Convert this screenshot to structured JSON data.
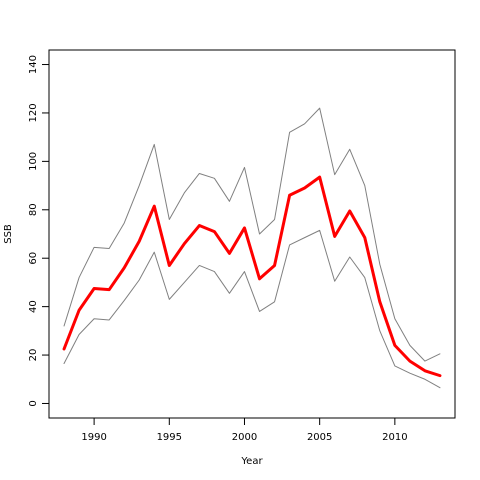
{
  "chart_data": {
    "type": "line",
    "title": "",
    "xlabel": "Year",
    "ylabel": "SSB",
    "xlim": [
      1987,
      2014
    ],
    "ylim": [
      -6,
      146
    ],
    "grid": false,
    "legend": "none",
    "x_ticks": [
      1990,
      1995,
      2000,
      2005,
      2010
    ],
    "y_ticks": [
      0,
      20,
      40,
      60,
      80,
      100,
      120,
      140
    ],
    "x": [
      1988,
      1989,
      1990,
      1991,
      1992,
      1993,
      1994,
      1995,
      1996,
      1997,
      1998,
      1999,
      2000,
      2001,
      2002,
      2003,
      2004,
      2005,
      2006,
      2007,
      2008,
      2009,
      2010,
      2011,
      2012,
      2013
    ],
    "series": [
      {
        "role": "upper",
        "color": "#808080",
        "values": [
          32,
          52,
          64.5,
          64,
          74.5,
          90,
          107,
          76,
          87,
          95,
          93,
          83.5,
          97.5,
          70,
          76,
          112,
          115.5,
          122,
          94.5,
          105,
          90,
          57.5,
          35,
          24,
          17.5,
          20.5
        ]
      },
      {
        "role": "estimate",
        "color": "#ff0000",
        "values": [
          22.5,
          38.5,
          47.5,
          47,
          56,
          67,
          81.5,
          57,
          66,
          73.5,
          71,
          62,
          72.5,
          51.5,
          57,
          86,
          89,
          93.5,
          69,
          79.5,
          68.5,
          42,
          24,
          17.5,
          13.5,
          11.5
        ]
      },
      {
        "role": "lower",
        "color": "#808080",
        "values": [
          16.5,
          28.5,
          35,
          34.5,
          42.5,
          51,
          62.5,
          43,
          50,
          57,
          54.5,
          45.5,
          54.5,
          38,
          42,
          65.5,
          68.5,
          71.5,
          50.5,
          60.5,
          52,
          30,
          15.5,
          12.5,
          10,
          6.5
        ]
      }
    ]
  }
}
